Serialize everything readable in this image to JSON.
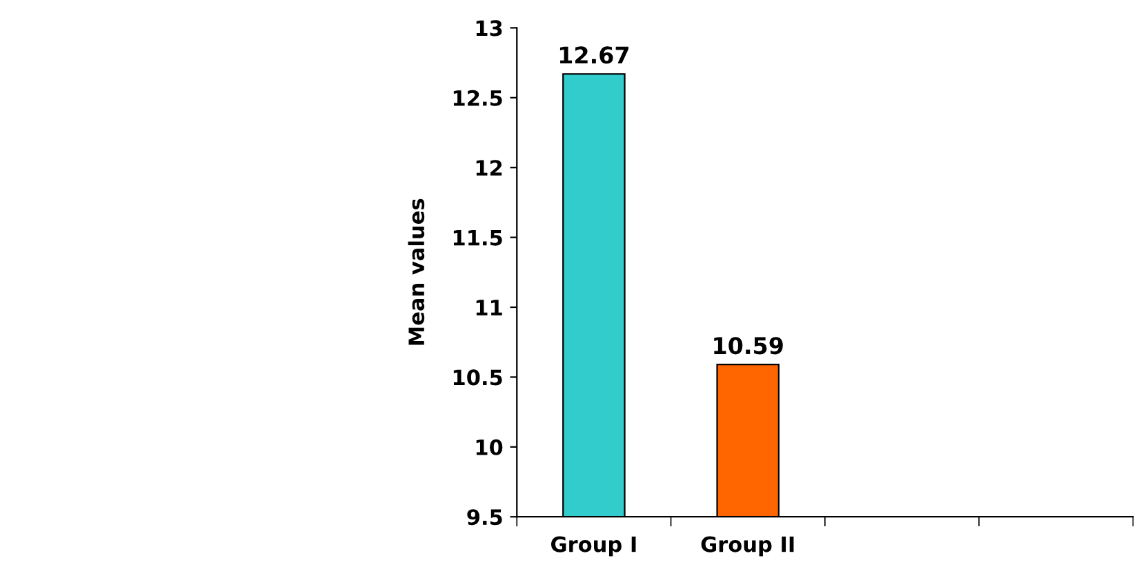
{
  "chart_data": {
    "type": "bar",
    "ylabel": "Mean values",
    "categories": [
      "Group I",
      "Group II",
      null,
      null
    ],
    "values": [
      12.67,
      10.59,
      null,
      null
    ],
    "colors": [
      "#33cccc",
      "#ff6600",
      null,
      null
    ],
    "ylim": [
      9.5,
      13
    ],
    "yticks": [
      9.5,
      10,
      {
        "value": 10.5,
        "label": "10.5"
      },
      11,
      {
        "value": 11.5,
        "label": "11.5"
      },
      12,
      {
        "value": 12.5,
        "label": "12.5"
      },
      13
    ],
    "data_labels": true,
    "grid": false,
    "legend": false
  }
}
